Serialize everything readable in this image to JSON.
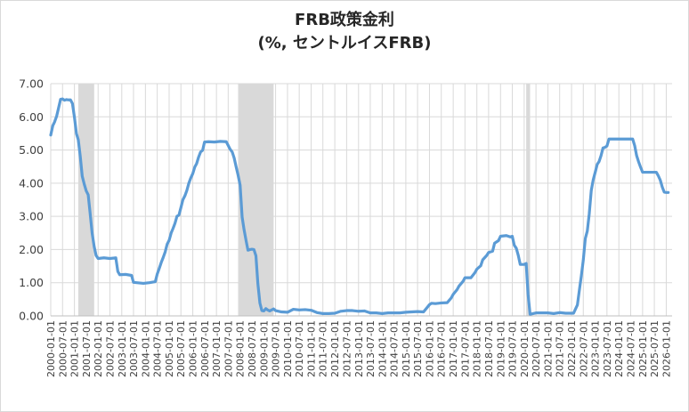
{
  "chart_data": {
    "type": "line",
    "title": "FRB政策金利",
    "subtitle": "(%, セントルイスFRB)",
    "ylim": [
      0,
      7
    ],
    "yticks": [
      "0.00",
      "1.00",
      "2.00",
      "3.00",
      "4.00",
      "5.00",
      "6.00",
      "7.00"
    ],
    "xlim": [
      "2000-01-01",
      "2026-04-01"
    ],
    "xticks": [
      "2000-01-01",
      "2000-07-01",
      "2001-01-01",
      "2001-07-01",
      "2002-01-01",
      "2002-07-01",
      "2003-01-01",
      "2003-07-01",
      "2004-01-01",
      "2004-07-01",
      "2005-01-01",
      "2005-07-01",
      "2006-01-01",
      "2006-07-01",
      "2007-01-01",
      "2007-07-01",
      "2008-01-01",
      "2008-07-01",
      "2009-01-01",
      "2009-07-01",
      "2010-01-01",
      "2010-07-01",
      "2011-01-01",
      "2011-07-01",
      "2012-01-01",
      "2012-07-01",
      "2013-01-01",
      "2013-07-01",
      "2014-01-01",
      "2014-07-01",
      "2015-01-01",
      "2015-07-01",
      "2016-01-01",
      "2016-07-01",
      "2017-01-01",
      "2017-07-01",
      "2018-01-01",
      "2018-07-01",
      "2019-01-01",
      "2019-07-01",
      "2020-01-01",
      "2020-07-01",
      "2021-01-01",
      "2021-07-01",
      "2022-01-01",
      "2022-07-01",
      "2023-01-01",
      "2023-07-01",
      "2024-01-01",
      "2024-07-01",
      "2025-01-01",
      "2025-07-01",
      "2026-01-01"
    ],
    "grid": true,
    "colors": {
      "line": "#5b9bd5",
      "recession": "#d9d9d9",
      "grid": "#d9d9d9"
    },
    "recessions": [
      [
        "2001-03-01",
        "2001-11-01"
      ],
      [
        "2007-12-01",
        "2009-06-01"
      ],
      [
        "2020-02-01",
        "2020-04-01"
      ]
    ],
    "series": [
      {
        "points": [
          [
            "2000-01-01",
            5.45
          ],
          [
            "2000-02-01",
            5.73
          ],
          [
            "2000-03-01",
            5.85
          ],
          [
            "2000-04-01",
            6.02
          ],
          [
            "2000-05-01",
            6.27
          ],
          [
            "2000-06-01",
            6.53
          ],
          [
            "2000-07-01",
            6.54
          ],
          [
            "2000-08-01",
            6.5
          ],
          [
            "2000-09-01",
            6.52
          ],
          [
            "2000-10-01",
            6.51
          ],
          [
            "2000-11-01",
            6.51
          ],
          [
            "2000-12-01",
            6.4
          ],
          [
            "2001-01-01",
            5.98
          ],
          [
            "2001-02-01",
            5.49
          ],
          [
            "2001-03-01",
            5.31
          ],
          [
            "2001-04-01",
            4.8
          ],
          [
            "2001-05-01",
            4.21
          ],
          [
            "2001-06-01",
            3.97
          ],
          [
            "2001-07-01",
            3.77
          ],
          [
            "2001-08-01",
            3.65
          ],
          [
            "2001-09-01",
            3.07
          ],
          [
            "2001-10-01",
            2.49
          ],
          [
            "2001-11-01",
            2.09
          ],
          [
            "2001-12-01",
            1.82
          ],
          [
            "2002-01-01",
            1.73
          ],
          [
            "2002-04-01",
            1.75
          ],
          [
            "2002-07-01",
            1.73
          ],
          [
            "2002-10-01",
            1.75
          ],
          [
            "2002-11-01",
            1.34
          ],
          [
            "2002-12-01",
            1.24
          ],
          [
            "2003-03-01",
            1.25
          ],
          [
            "2003-06-01",
            1.22
          ],
          [
            "2003-07-01",
            1.01
          ],
          [
            "2003-12-01",
            0.98
          ],
          [
            "2004-03-01",
            1.0
          ],
          [
            "2004-06-01",
            1.03
          ],
          [
            "2004-07-01",
            1.26
          ],
          [
            "2004-08-01",
            1.43
          ],
          [
            "2004-09-01",
            1.61
          ],
          [
            "2004-10-01",
            1.76
          ],
          [
            "2004-11-01",
            1.93
          ],
          [
            "2004-12-01",
            2.16
          ],
          [
            "2005-01-01",
            2.28
          ],
          [
            "2005-02-01",
            2.5
          ],
          [
            "2005-03-01",
            2.63
          ],
          [
            "2005-04-01",
            2.79
          ],
          [
            "2005-05-01",
            3.0
          ],
          [
            "2005-06-01",
            3.04
          ],
          [
            "2005-07-01",
            3.26
          ],
          [
            "2005-08-01",
            3.5
          ],
          [
            "2005-09-01",
            3.62
          ],
          [
            "2005-10-01",
            3.78
          ],
          [
            "2005-11-01",
            4.0
          ],
          [
            "2005-12-01",
            4.16
          ],
          [
            "2006-01-01",
            4.29
          ],
          [
            "2006-02-01",
            4.49
          ],
          [
            "2006-03-01",
            4.59
          ],
          [
            "2006-04-01",
            4.79
          ],
          [
            "2006-05-01",
            4.94
          ],
          [
            "2006-06-01",
            4.99
          ],
          [
            "2006-07-01",
            5.24
          ],
          [
            "2006-09-01",
            5.25
          ],
          [
            "2006-12-01",
            5.24
          ],
          [
            "2007-03-01",
            5.26
          ],
          [
            "2007-06-01",
            5.25
          ],
          [
            "2007-08-01",
            5.02
          ],
          [
            "2007-09-01",
            4.94
          ],
          [
            "2007-10-01",
            4.76
          ],
          [
            "2007-11-01",
            4.49
          ],
          [
            "2007-12-01",
            4.24
          ],
          [
            "2008-01-01",
            3.94
          ],
          [
            "2008-02-01",
            2.98
          ],
          [
            "2008-03-01",
            2.61
          ],
          [
            "2008-04-01",
            2.28
          ],
          [
            "2008-05-01",
            1.98
          ],
          [
            "2008-06-01",
            2.0
          ],
          [
            "2008-07-01",
            2.01
          ],
          [
            "2008-08-01",
            2.0
          ],
          [
            "2008-09-01",
            1.81
          ],
          [
            "2008-10-01",
            0.97
          ],
          [
            "2008-11-01",
            0.39
          ],
          [
            "2008-12-01",
            0.16
          ],
          [
            "2009-01-01",
            0.15
          ],
          [
            "2009-02-01",
            0.22
          ],
          [
            "2009-03-01",
            0.18
          ],
          [
            "2009-04-01",
            0.15
          ],
          [
            "2009-05-01",
            0.18
          ],
          [
            "2009-06-01",
            0.21
          ],
          [
            "2009-07-01",
            0.16
          ],
          [
            "2009-10-01",
            0.12
          ],
          [
            "2010-01-01",
            0.11
          ],
          [
            "2010-04-01",
            0.2
          ],
          [
            "2010-07-01",
            0.18
          ],
          [
            "2010-10-01",
            0.19
          ],
          [
            "2011-01-01",
            0.17
          ],
          [
            "2011-04-01",
            0.1
          ],
          [
            "2011-07-01",
            0.07
          ],
          [
            "2011-10-01",
            0.07
          ],
          [
            "2012-01-01",
            0.08
          ],
          [
            "2012-04-01",
            0.14
          ],
          [
            "2012-07-01",
            0.16
          ],
          [
            "2012-10-01",
            0.16
          ],
          [
            "2013-01-01",
            0.14
          ],
          [
            "2013-04-01",
            0.15
          ],
          [
            "2013-07-01",
            0.09
          ],
          [
            "2013-10-01",
            0.09
          ],
          [
            "2014-01-01",
            0.07
          ],
          [
            "2014-04-01",
            0.09
          ],
          [
            "2014-07-01",
            0.09
          ],
          [
            "2014-10-01",
            0.09
          ],
          [
            "2015-01-01",
            0.11
          ],
          [
            "2015-04-01",
            0.12
          ],
          [
            "2015-07-01",
            0.13
          ],
          [
            "2015-10-01",
            0.12
          ],
          [
            "2016-01-01",
            0.34
          ],
          [
            "2016-02-01",
            0.38
          ],
          [
            "2016-04-01",
            0.37
          ],
          [
            "2016-07-01",
            0.39
          ],
          [
            "2016-10-01",
            0.4
          ],
          [
            "2016-12-01",
            0.54
          ],
          [
            "2017-01-01",
            0.65
          ],
          [
            "2017-03-01",
            0.79
          ],
          [
            "2017-04-01",
            0.9
          ],
          [
            "2017-06-01",
            1.04
          ],
          [
            "2017-07-01",
            1.15
          ],
          [
            "2017-10-01",
            1.15
          ],
          [
            "2017-12-01",
            1.3
          ],
          [
            "2018-01-01",
            1.41
          ],
          [
            "2018-03-01",
            1.51
          ],
          [
            "2018-04-01",
            1.69
          ],
          [
            "2018-06-01",
            1.82
          ],
          [
            "2018-07-01",
            1.91
          ],
          [
            "2018-09-01",
            1.95
          ],
          [
            "2018-10-01",
            2.19
          ],
          [
            "2018-12-01",
            2.27
          ],
          [
            "2019-01-01",
            2.4
          ],
          [
            "2019-04-01",
            2.42
          ],
          [
            "2019-06-01",
            2.38
          ],
          [
            "2019-07-01",
            2.4
          ],
          [
            "2019-08-01",
            2.13
          ],
          [
            "2019-09-01",
            2.04
          ],
          [
            "2019-10-01",
            1.83
          ],
          [
            "2019-11-01",
            1.55
          ],
          [
            "2019-12-01",
            1.55
          ],
          [
            "2020-01-01",
            1.55
          ],
          [
            "2020-02-01",
            1.58
          ],
          [
            "2020-03-01",
            0.65
          ],
          [
            "2020-04-01",
            0.05
          ],
          [
            "2020-07-01",
            0.09
          ],
          [
            "2020-10-01",
            0.09
          ],
          [
            "2021-01-01",
            0.09
          ],
          [
            "2021-04-01",
            0.07
          ],
          [
            "2021-07-01",
            0.1
          ],
          [
            "2021-10-01",
            0.08
          ],
          [
            "2022-01-01",
            0.08
          ],
          [
            "2022-02-01",
            0.08
          ],
          [
            "2022-03-01",
            0.2
          ],
          [
            "2022-04-01",
            0.33
          ],
          [
            "2022-05-01",
            0.77
          ],
          [
            "2022-06-01",
            1.21
          ],
          [
            "2022-07-01",
            1.68
          ],
          [
            "2022-08-01",
            2.33
          ],
          [
            "2022-09-01",
            2.56
          ],
          [
            "2022-10-01",
            3.08
          ],
          [
            "2022-11-01",
            3.78
          ],
          [
            "2022-12-01",
            4.1
          ],
          [
            "2023-01-01",
            4.33
          ],
          [
            "2023-02-01",
            4.57
          ],
          [
            "2023-03-01",
            4.65
          ],
          [
            "2023-04-01",
            4.83
          ],
          [
            "2023-05-01",
            5.06
          ],
          [
            "2023-06-01",
            5.08
          ],
          [
            "2023-07-01",
            5.12
          ],
          [
            "2023-08-01",
            5.33
          ],
          [
            "2023-10-01",
            5.33
          ],
          [
            "2024-01-01",
            5.33
          ],
          [
            "2024-04-01",
            5.33
          ],
          [
            "2024-07-01",
            5.33
          ],
          [
            "2024-08-01",
            5.33
          ],
          [
            "2024-09-01",
            5.13
          ],
          [
            "2024-10-01",
            4.83
          ],
          [
            "2024-11-01",
            4.64
          ],
          [
            "2024-12-01",
            4.48
          ],
          [
            "2025-01-01",
            4.33
          ],
          [
            "2025-04-01",
            4.33
          ],
          [
            "2025-07-01",
            4.33
          ],
          [
            "2025-08-01",
            4.33
          ],
          [
            "2025-09-01",
            4.22
          ],
          [
            "2025-10-01",
            4.09
          ],
          [
            "2025-11-01",
            3.88
          ],
          [
            "2025-12-01",
            3.73
          ],
          [
            "2026-01-01",
            3.72
          ],
          [
            "2026-02-01",
            3.72
          ]
        ]
      }
    ]
  }
}
